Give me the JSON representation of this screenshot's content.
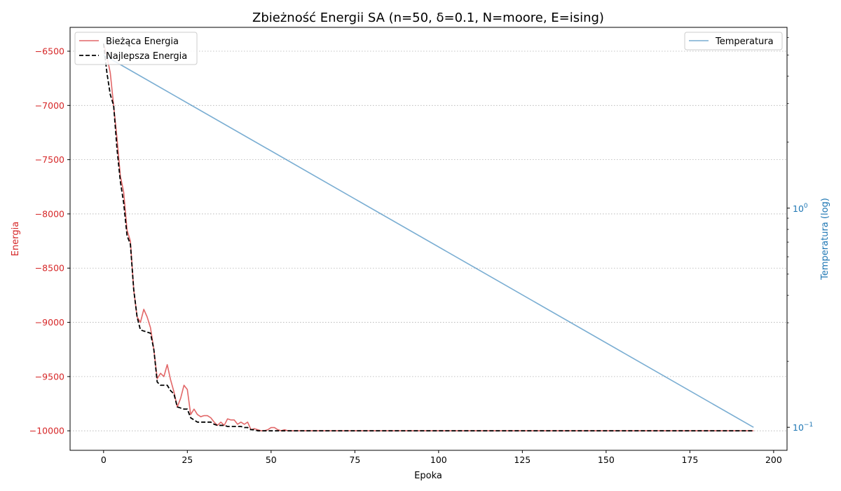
{
  "chart_data": {
    "type": "line",
    "title": "Zbieżność Energii SA (n=50, δ=0.1, N=moore, E=ising)",
    "xlabel": "Epoka",
    "ylabel_left": "Energia",
    "ylabel_right": "Temperatura (log)",
    "xlim": [
      -10,
      204
    ],
    "ylim_left": [
      -10180,
      -6280
    ],
    "ylim_right_log10": [
      -1.105,
      0.825
    ],
    "x_ticks": [
      0,
      25,
      50,
      75,
      100,
      125,
      150,
      175,
      200
    ],
    "y_ticks_left": [
      -6500,
      -7000,
      -7500,
      -8000,
      -8500,
      -9000,
      -9500,
      -10000
    ],
    "y_ticks_left_labels": [
      "−6500",
      "−7000",
      "−7500",
      "−8000",
      "−8500",
      "−9000",
      "−9500",
      "−10000"
    ],
    "y_ticks_right_major": [
      {
        "value": 1.0,
        "base": "10",
        "exp": "0"
      },
      {
        "value": 0.1,
        "base": "10",
        "exp": "−1"
      }
    ],
    "y_ticks_right_minor": [
      0.2,
      0.3,
      0.4,
      0.5,
      0.6,
      0.7,
      0.8,
      0.9,
      2,
      3,
      4,
      5,
      6
    ],
    "grid": "horizontal-dotted",
    "legend_left": "top-left",
    "legend_right": "top-right",
    "colors": {
      "current": "#d62728",
      "best": "#000000",
      "temperature": "#1f77b4",
      "left_axis": "#d62728",
      "right_axis": "#1f77b4"
    },
    "series": [
      {
        "name": "Bieżąca Energia",
        "axis": "left",
        "style": "solid",
        "x": [
          0,
          1,
          2,
          3,
          4,
          5,
          6,
          7,
          8,
          9,
          10,
          11,
          12,
          13,
          14,
          15,
          16,
          17,
          18,
          19,
          20,
          21,
          22,
          23,
          24,
          25,
          26,
          27,
          28,
          29,
          30,
          31,
          32,
          33,
          34,
          35,
          36,
          37,
          38,
          39,
          40,
          41,
          42,
          43,
          44,
          45,
          46,
          47,
          48,
          49,
          50,
          51,
          52,
          53,
          54,
          55,
          60,
          80,
          100,
          120,
          140,
          160,
          180,
          194
        ],
        "values": [
          -6430,
          -6550,
          -6700,
          -7000,
          -7300,
          -7650,
          -7800,
          -8150,
          -8250,
          -8700,
          -8950,
          -9000,
          -8880,
          -8950,
          -9050,
          -9250,
          -9520,
          -9470,
          -9500,
          -9390,
          -9530,
          -9640,
          -9780,
          -9700,
          -9580,
          -9620,
          -9850,
          -9800,
          -9850,
          -9870,
          -9860,
          -9860,
          -9880,
          -9920,
          -9950,
          -9920,
          -9950,
          -9890,
          -9900,
          -9900,
          -9940,
          -9920,
          -9940,
          -9920,
          -9990,
          -9980,
          -9990,
          -10000,
          -10000,
          -9990,
          -9970,
          -9970,
          -9990,
          -10000,
          -9990,
          -10000,
          -10000,
          -10000,
          -10000,
          -10000,
          -10000,
          -10000,
          -10000,
          -10000
        ]
      },
      {
        "name": "Najlepsza Energia",
        "axis": "left",
        "style": "dashed",
        "x": [
          0,
          1,
          2,
          3,
          4,
          5,
          6,
          7,
          8,
          9,
          10,
          11,
          12,
          13,
          14,
          15,
          16,
          17,
          18,
          19,
          20,
          21,
          22,
          23,
          24,
          25,
          26,
          27,
          28,
          29,
          30,
          31,
          32,
          33,
          34,
          35,
          36,
          37,
          38,
          39,
          40,
          41,
          42,
          43,
          44,
          45,
          46,
          47,
          48,
          50,
          52,
          54,
          60,
          80,
          100,
          120,
          140,
          160,
          180,
          194
        ],
        "values": [
          -6430,
          -6700,
          -6900,
          -7000,
          -7400,
          -7700,
          -7900,
          -8200,
          -8280,
          -8700,
          -8950,
          -9070,
          -9080,
          -9090,
          -9100,
          -9250,
          -9550,
          -9580,
          -9580,
          -9580,
          -9630,
          -9660,
          -9780,
          -9790,
          -9800,
          -9800,
          -9880,
          -9900,
          -9920,
          -9920,
          -9920,
          -9920,
          -9920,
          -9940,
          -9950,
          -9950,
          -9950,
          -9960,
          -9960,
          -9960,
          -9960,
          -9960,
          -9970,
          -9970,
          -9990,
          -9990,
          -10000,
          -10000,
          -10000,
          -10000,
          -10000,
          -10000,
          -10000,
          -10000,
          -10000,
          -10000,
          -10000,
          -10000,
          -10000,
          -10000
        ]
      },
      {
        "name": "Temperatura",
        "axis": "right",
        "style": "solid",
        "x": [
          0,
          194
        ],
        "values": [
          5.0,
          0.1
        ]
      }
    ]
  }
}
